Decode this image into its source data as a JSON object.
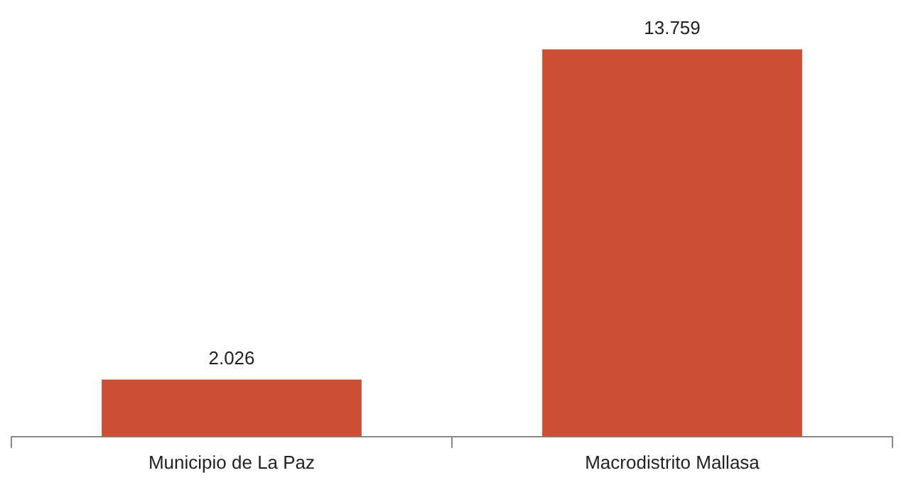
{
  "chart_data": {
    "type": "bar",
    "categories": [
      "Municipio de La Paz",
      "Macrodistrito Mallasa"
    ],
    "values": [
      2026,
      13759
    ],
    "value_labels": [
      "2.026",
      "13.759"
    ],
    "color": "#cc4f35",
    "grid": false,
    "legend": false
  }
}
